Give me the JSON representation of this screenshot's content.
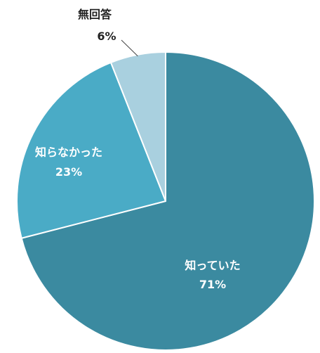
{
  "chart_data": {
    "type": "pie",
    "slices": [
      {
        "label": "知っていた",
        "value": 71,
        "value_label": "71%",
        "color": "#3b8aa0"
      },
      {
        "label": "知らなかった",
        "value": 23,
        "value_label": "23%",
        "color": "#4aabc6"
      },
      {
        "label": "無回答",
        "value": 6,
        "value_label": "6%",
        "color": "#a9d0df"
      }
    ],
    "start_angle_deg": 0,
    "direction": "clockwise",
    "legend": "none"
  }
}
